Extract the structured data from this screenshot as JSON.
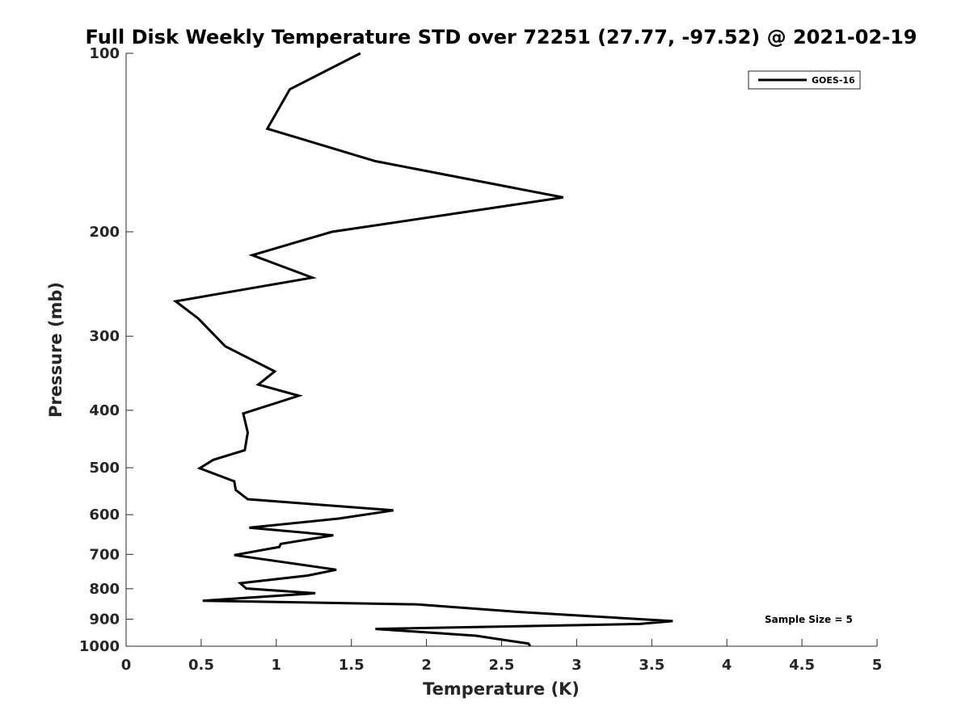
{
  "chart_data": {
    "type": "line",
    "title": "Full Disk Weekly Temperature STD over 72251 (27.77, -97.52) @ 2021-02-19",
    "xlabel": "Temperature (K)",
    "ylabel": "Pressure (mb)",
    "xlim": [
      0,
      5
    ],
    "ylim": [
      100,
      1000
    ],
    "y_scale": "log",
    "y_reversed": true,
    "x_ticks": [
      0,
      0.5,
      1,
      1.5,
      2,
      2.5,
      3,
      3.5,
      4,
      4.5,
      5
    ],
    "x_tick_labels": [
      "0",
      "0.5",
      "1",
      "1.5",
      "2",
      "2.5",
      "3",
      "3.5",
      "4",
      "4.5",
      "5"
    ],
    "y_ticks": [
      100,
      200,
      300,
      400,
      500,
      600,
      700,
      800,
      900,
      1000
    ],
    "y_tick_labels": [
      "100",
      "200",
      "300",
      "400",
      "500",
      "600",
      "700",
      "800",
      "900",
      "1000"
    ],
    "grid": false,
    "legend_position": "top-right",
    "series": [
      {
        "name": "GOES-16",
        "color": "#000000",
        "points": [
          [
            1.56,
            100
          ],
          [
            1.09,
            115
          ],
          [
            0.94,
            134
          ],
          [
            1.66,
            152
          ],
          [
            2.91,
            175
          ],
          [
            1.37,
            200
          ],
          [
            0.84,
            219
          ],
          [
            1.24,
            239
          ],
          [
            0.33,
            262
          ],
          [
            0.48,
            280
          ],
          [
            0.66,
            312
          ],
          [
            0.99,
            344
          ],
          [
            0.88,
            362
          ],
          [
            1.15,
            378
          ],
          [
            0.78,
            405
          ],
          [
            0.81,
            436
          ],
          [
            0.79,
            467
          ],
          [
            0.58,
            485
          ],
          [
            0.49,
            501
          ],
          [
            0.72,
            527
          ],
          [
            0.73,
            545
          ],
          [
            0.81,
            565
          ],
          [
            1.78,
            590
          ],
          [
            1.42,
            609
          ],
          [
            0.82,
            631
          ],
          [
            1.38,
            650
          ],
          [
            1.03,
            672
          ],
          [
            1.02,
            680
          ],
          [
            0.72,
            702
          ],
          [
            1.4,
            743
          ],
          [
            1.21,
            760
          ],
          [
            0.76,
            783
          ],
          [
            0.8,
            799
          ],
          [
            1.26,
            814
          ],
          [
            0.51,
            838
          ],
          [
            1.94,
            850
          ],
          [
            2.63,
            876
          ],
          [
            3.64,
            907
          ],
          [
            3.42,
            917
          ],
          [
            1.66,
            935
          ],
          [
            2.33,
            960
          ],
          [
            2.68,
            990
          ],
          [
            2.69,
            1000
          ]
        ]
      }
    ],
    "annotation": "Sample Size = 5"
  }
}
